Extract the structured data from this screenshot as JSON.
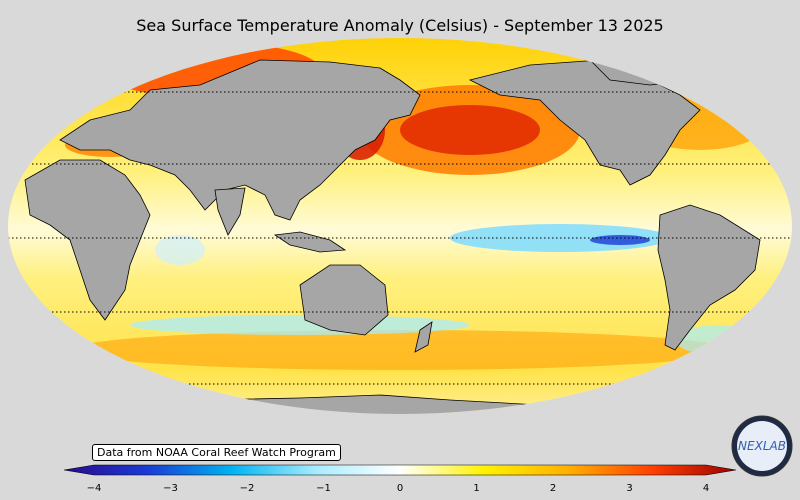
{
  "title": "Sea Surface Temperature Anomaly (Celsius) - September 13 2025",
  "credit": "Data from NOAA Coral Reef Watch Program",
  "logo": {
    "name": "NEXLAB logo",
    "text": "NEXLAB"
  },
  "colorbar": {
    "min": -4,
    "max": 4,
    "ticks": [
      "−4",
      "−3",
      "−2",
      "−1",
      "0",
      "1",
      "2",
      "3",
      "4"
    ],
    "stops": [
      "#2a0a8c",
      "#1a3bd6",
      "#00b4f0",
      "#a8ecff",
      "#ffffff",
      "#fff200",
      "#ffb000",
      "#ff4000",
      "#9b0000"
    ]
  },
  "colors": {
    "land": "#a6a6a6",
    "background": "#d9d9d9",
    "warm": "#ffb000",
    "hot": "#e02000",
    "cool": "#7fdcff"
  }
}
